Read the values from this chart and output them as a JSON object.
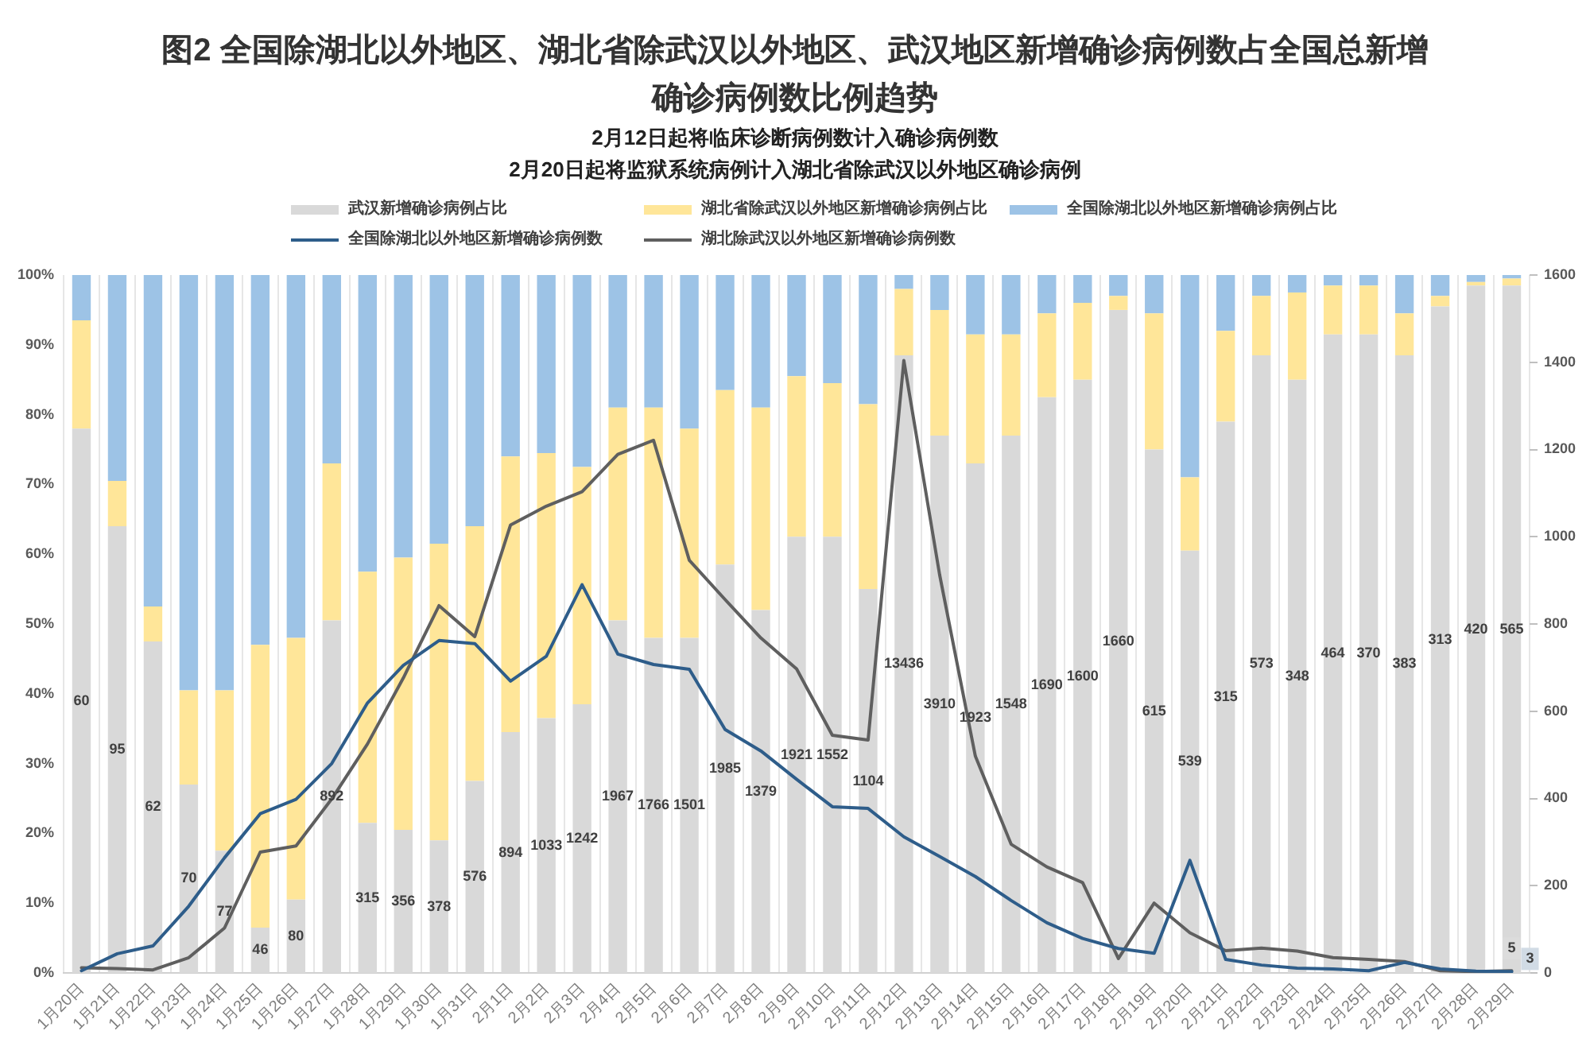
{
  "chart_data": {
    "type": "bar",
    "title": "图2 全国除湖北以外地区、湖北省除武汉以外地区、武汉地区新增确诊病例数占全国总新增确诊病例数比例趋势",
    "subtitle": "2月12日起将临床诊断病例数计入确诊病例数\n2月20日起将监狱系统病例计入湖北省除武汉以外地区确诊病例",
    "annotations": [
      "60",
      "95",
      "62",
      "70",
      "77",
      "46",
      "80",
      "892",
      "315",
      "356",
      "378",
      "576",
      "894",
      "1033",
      "1242",
      "1967",
      "1766",
      "1501",
      "1985",
      "1379",
      "1921",
      "1552",
      "1104",
      "13436",
      "3910",
      "1923",
      "1548",
      "1690",
      "1600",
      "1660",
      "615",
      "539",
      "315",
      "573",
      "348",
      "464",
      "370",
      "383",
      "313",
      "420",
      "565"
    ],
    "categories": [
      "1月20日",
      "1月21日",
      "1月22日",
      "1月23日",
      "1月24日",
      "1月25日",
      "1月26日",
      "1月27日",
      "1月28日",
      "1月29日",
      "1月30日",
      "1月31日",
      "2月1日",
      "2月2日",
      "2月3日",
      "2月4日",
      "2月5日",
      "2月6日",
      "2月7日",
      "2月8日",
      "2月9日",
      "2月10日",
      "2月11日",
      "2月12日",
      "2月13日",
      "2月14日",
      "2月15日",
      "2月16日",
      "2月17日",
      "2月18日",
      "2月19日",
      "2月20日",
      "2月21日",
      "2月22日",
      "2月23日",
      "2月24日",
      "2月25日",
      "2月26日",
      "2月27日",
      "2月28日",
      "2月29日"
    ],
    "stacked": true,
    "legend": "top",
    "grid": "x",
    "marker": "none",
    "ylim": [
      0,
      100
    ],
    "yticks": [
      {
        "value": 0,
        "label": "0%"
      },
      {
        "value": 10,
        "label": "10%"
      },
      {
        "value": 20,
        "label": "20%"
      },
      {
        "value": 30,
        "label": "30%"
      },
      {
        "value": 40,
        "label": "40%"
      },
      {
        "value": 50,
        "label": "50%"
      },
      {
        "value": 60,
        "label": "60%"
      },
      {
        "value": 70,
        "label": "70%"
      },
      {
        "value": 80,
        "label": "80%"
      },
      {
        "value": 90,
        "label": "90%"
      },
      {
        "value": 100,
        "label": "100%"
      }
    ],
    "y2lim": [
      0,
      1600
    ],
    "y2ticks": [
      0,
      200,
      400,
      600,
      800,
      1000,
      1200,
      1400,
      1600
    ],
    "series": [
      {
        "name": "武汉新增确诊病例占比",
        "color": "#d9d9d9",
        "values": [
          78,
          64,
          47.5,
          27,
          17.5,
          6.5,
          10.5,
          50.5,
          21.5,
          20.5,
          19,
          27.5,
          34.5,
          36.5,
          38.5,
          50.5,
          48,
          48,
          58.5,
          52,
          62.5,
          62.5,
          55,
          88.5,
          77,
          73,
          77,
          82.5,
          85,
          95,
          75,
          60.5,
          79,
          88.5,
          85,
          91.5,
          91.5,
          88.5,
          95.5,
          98.5,
          98.5
        ]
      },
      {
        "name": "湖北省除武汉以外地区新增确诊病例占比",
        "color": "#ffe699",
        "values": [
          15.5,
          6.5,
          5,
          13.5,
          23,
          40.5,
          37.5,
          22.5,
          36,
          39,
          42.5,
          36.5,
          39.5,
          38,
          34,
          30.5,
          33,
          30,
          25,
          29,
          23,
          22,
          26.5,
          9.5,
          18,
          18.5,
          14.5,
          12,
          11,
          2,
          19.5,
          10.5,
          13,
          8.5,
          12.5,
          7,
          7,
          6,
          1.5,
          0.5,
          1
        ]
      },
      {
        "name": "全国除湖北以外地区新增确诊病例占比",
        "color": "#9dc3e6",
        "values": [
          6.5,
          29.5,
          47.5,
          59.5,
          59.5,
          53,
          52,
          27,
          42.5,
          40.5,
          38.5,
          36,
          26,
          25.5,
          27.5,
          19,
          19,
          22,
          16.5,
          19,
          14.5,
          15.5,
          18.5,
          2,
          5,
          8.5,
          8.5,
          5.5,
          4,
          3,
          5.5,
          29,
          8,
          3,
          2.5,
          1.5,
          1.5,
          5.5,
          3,
          1,
          0.5
        ]
      },
      {
        "name": "全国除湖北以外地区新增确诊病例数",
        "type": "line",
        "axis": "y2",
        "color": "#2e5d8a",
        "values": [
          5,
          44,
          62,
          153,
          264,
          365,
          398,
          480,
          619,
          705,
          762,
          755,
          669,
          726,
          890,
          731,
          707,
          696,
          558,
          509,
          444,
          381,
          377,
          312,
          267,
          221,
          166,
          115,
          79,
          56,
          45,
          258,
          31,
          18,
          11,
          9,
          5,
          24,
          9,
          4,
          3
        ],
        "value_labels": [
          null,
          null,
          null,
          null,
          null,
          null,
          null,
          null,
          null,
          null,
          null,
          null,
          null,
          null,
          null,
          null,
          null,
          null,
          null,
          null,
          null,
          null,
          null,
          null,
          null,
          null,
          null,
          null,
          null,
          null,
          null,
          null,
          null,
          null,
          null,
          null,
          null,
          null,
          null,
          null,
          "3"
        ]
      },
      {
        "name": "湖北除武汉以外地区新增确诊病例数",
        "type": "line",
        "axis": "y2",
        "color": "#5f5f5f",
        "values": [
          12,
          10,
          7,
          35,
          103,
          277,
          291,
          399,
          525,
          676,
          842,
          771,
          1027,
          1070,
          1103,
          1189,
          1221,
          946,
          856,
          768,
          697,
          545,
          534,
          1404,
          913,
          497,
          295,
          243,
          207,
          33,
          160,
          92,
          51,
          57,
          50,
          35,
          31,
          26,
          5,
          3,
          5
        ],
        "value_labels": [
          null,
          null,
          null,
          null,
          null,
          null,
          null,
          null,
          null,
          null,
          null,
          null,
          null,
          null,
          null,
          null,
          null,
          null,
          null,
          null,
          null,
          null,
          null,
          null,
          null,
          null,
          null,
          null,
          null,
          null,
          null,
          null,
          null,
          null,
          null,
          null,
          null,
          null,
          null,
          null,
          "5"
        ]
      }
    ]
  }
}
